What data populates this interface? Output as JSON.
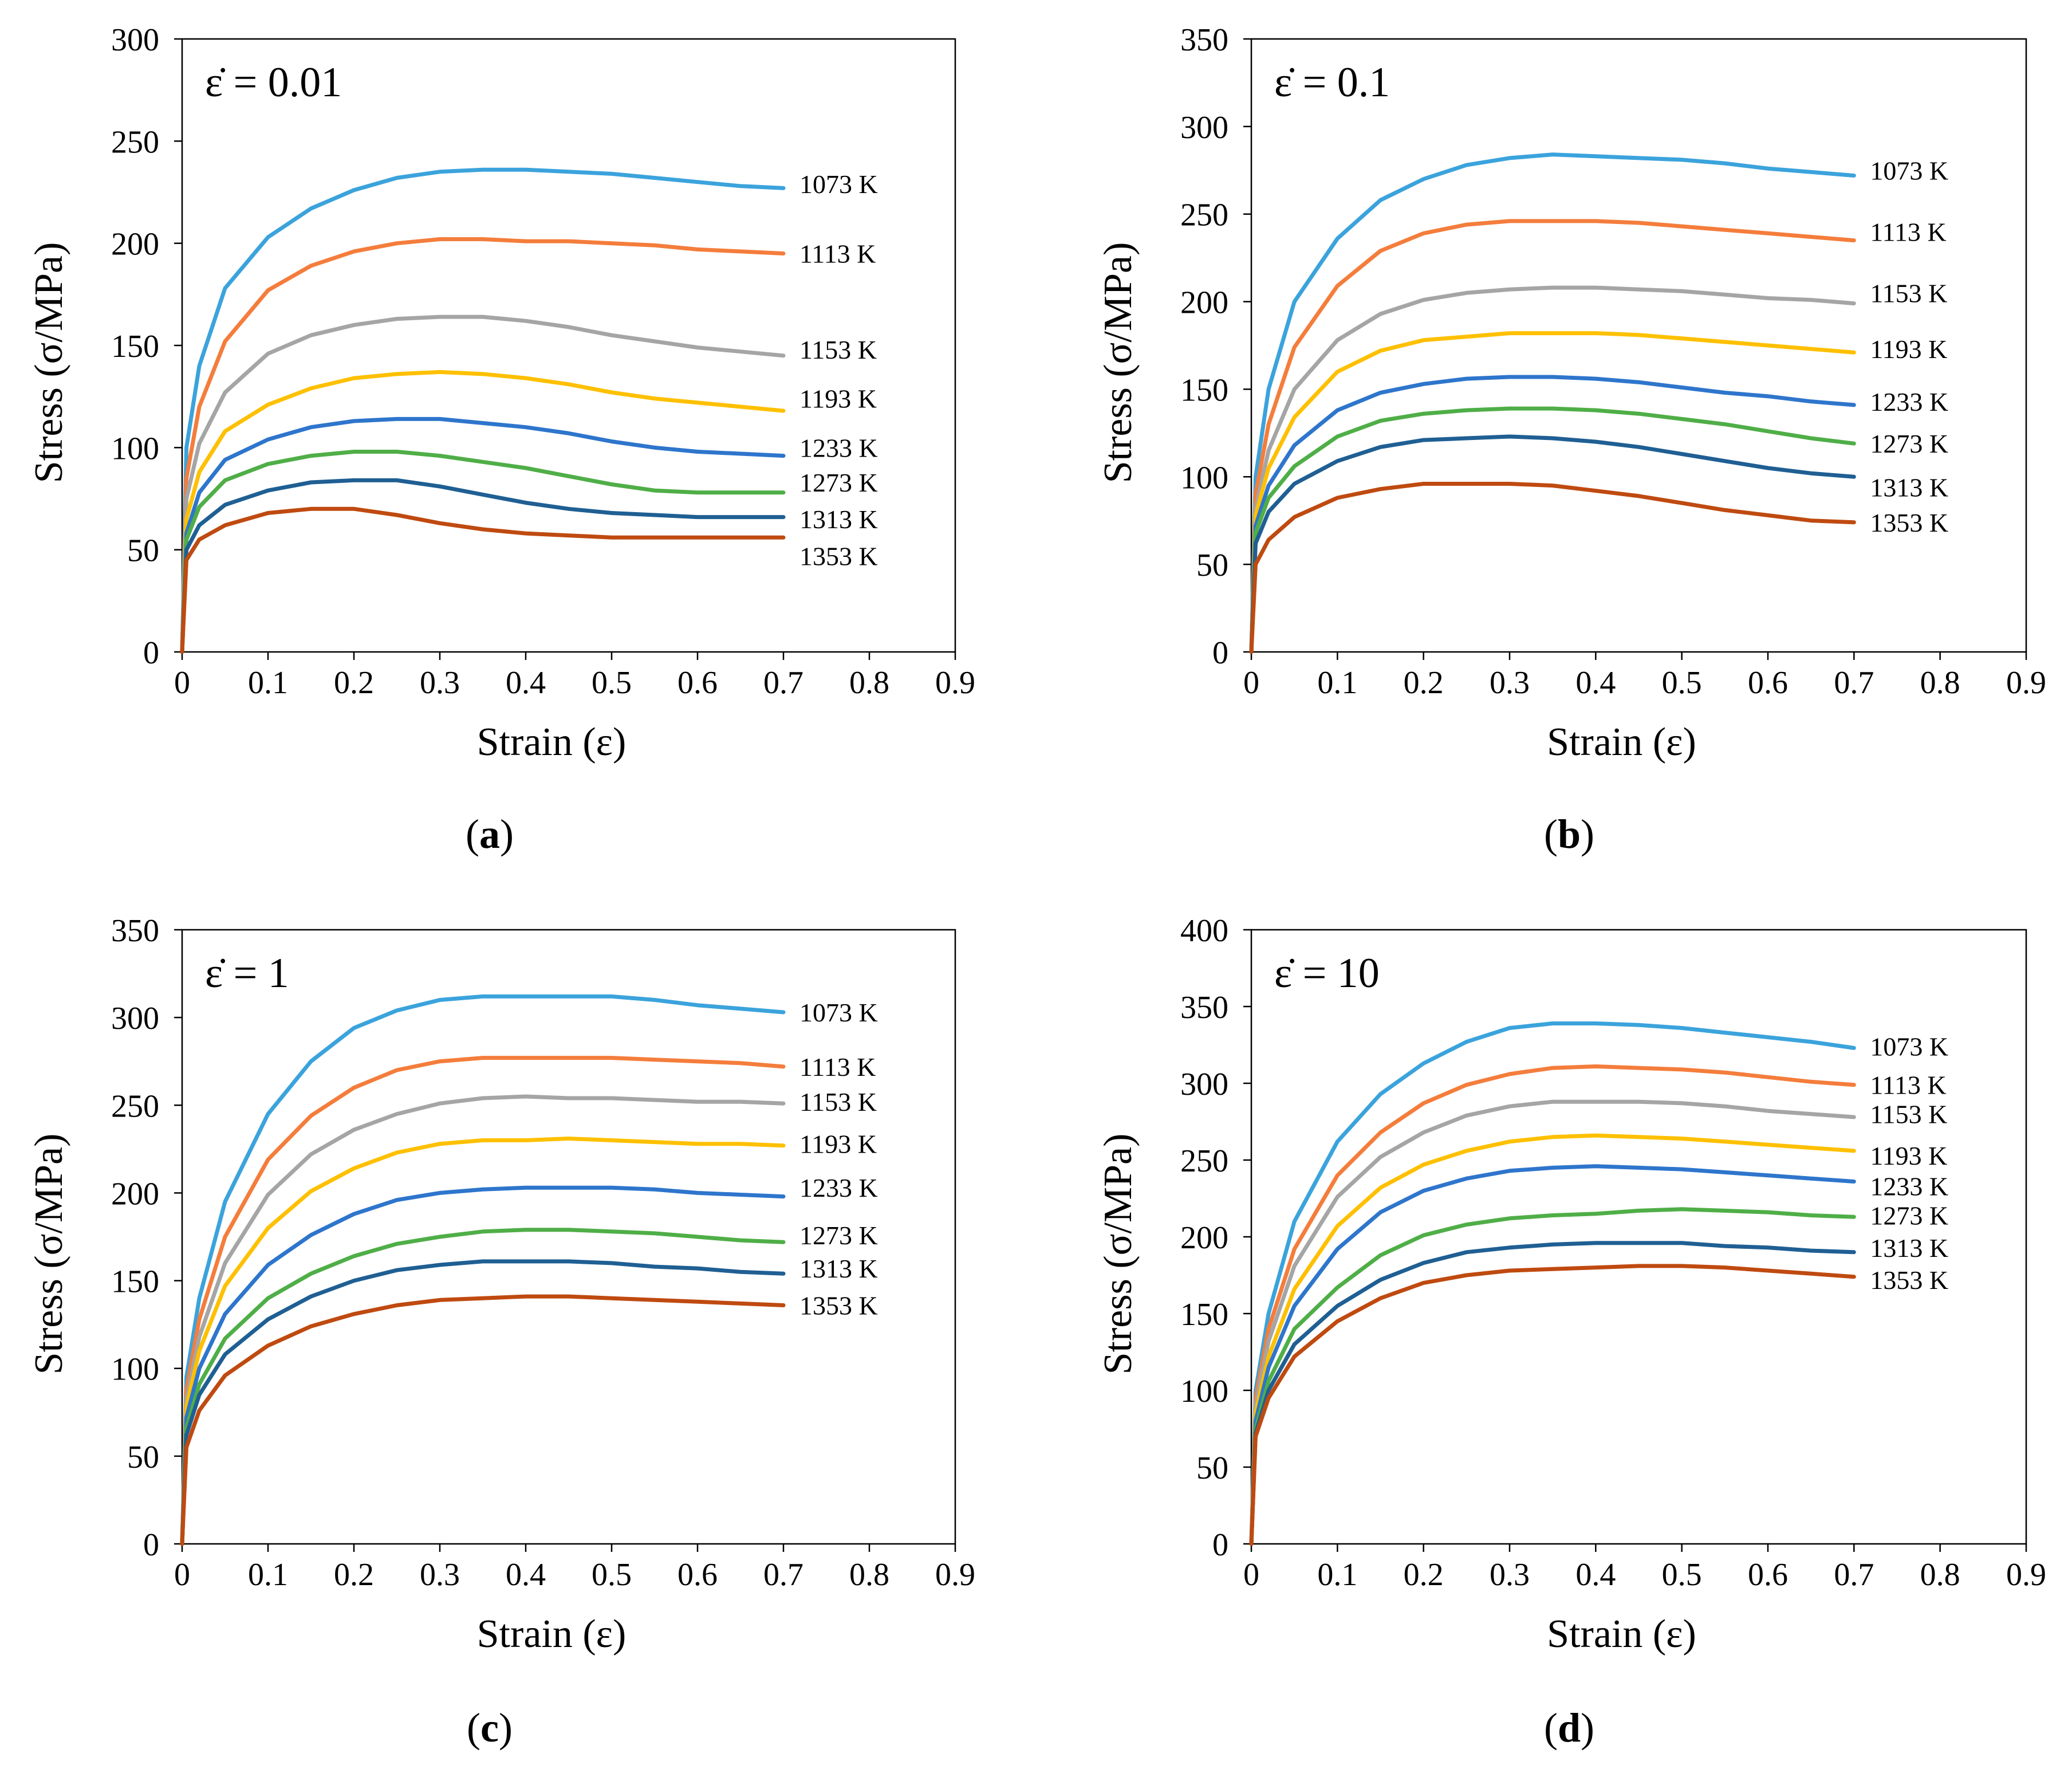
{
  "figure": {
    "panels": [
      {
        "caption_open": "(",
        "caption_letter": "a",
        "caption_close": ")"
      },
      {
        "caption_open": "(",
        "caption_letter": "b",
        "caption_close": ")"
      },
      {
        "caption_open": "(",
        "caption_letter": "c",
        "caption_close": ")"
      },
      {
        "caption_open": "(",
        "caption_letter": "d",
        "caption_close": ")"
      }
    ]
  },
  "colors": {
    "1073 K": "#3ba3dc",
    "1113 K": "#f47d3c",
    "1153 K": "#a5a5a5",
    "1193 K": "#fec000",
    "1233 K": "#2e75cc",
    "1273 K": "#4fae47",
    "1313 K": "#1f5f93",
    "1353 K": "#bf4a10"
  },
  "chart_data": [
    {
      "type": "line",
      "rate_label": "ε̇ = 0.01",
      "xlabel": "Strain (ε)",
      "ylabel": "Stress (σ/MPa)",
      "xlim": [
        0,
        0.9
      ],
      "ylim": [
        0,
        300
      ],
      "xticks": [
        "0",
        "0.1",
        "0.2",
        "0.3",
        "0.4",
        "0.5",
        "0.6",
        "0.7",
        "0.8",
        "0.9"
      ],
      "yticks": [
        "0",
        "50",
        "100",
        "150",
        "200",
        "250",
        "300"
      ],
      "ytick_values": [
        0,
        50,
        100,
        150,
        200,
        250,
        300
      ],
      "x": [
        0,
        0.005,
        0.02,
        0.05,
        0.1,
        0.15,
        0.2,
        0.25,
        0.3,
        0.35,
        0.4,
        0.45,
        0.5,
        0.55,
        0.6,
        0.65,
        0.7
      ],
      "series": [
        {
          "name": "1073 K",
          "label_y": 229,
          "values": [
            0,
            100,
            140,
            178,
            203,
            217,
            226,
            232,
            235,
            236,
            236,
            235,
            234,
            232,
            230,
            228,
            227
          ]
        },
        {
          "name": "1113 K",
          "label_y": 195,
          "values": [
            0,
            85,
            120,
            152,
            177,
            189,
            196,
            200,
            202,
            202,
            201,
            201,
            200,
            199,
            197,
            196,
            195
          ]
        },
        {
          "name": "1153 K",
          "label_y": 148,
          "values": [
            0,
            75,
            102,
            127,
            146,
            155,
            160,
            163,
            164,
            164,
            162,
            159,
            155,
            152,
            149,
            147,
            145
          ]
        },
        {
          "name": "1193 K",
          "label_y": 124,
          "values": [
            0,
            65,
            88,
            108,
            121,
            129,
            134,
            136,
            137,
            136,
            134,
            131,
            127,
            124,
            122,
            120,
            118
          ]
        },
        {
          "name": "1233 K",
          "label_y": 100,
          "values": [
            0,
            58,
            78,
            94,
            104,
            110,
            113,
            114,
            114,
            112,
            110,
            107,
            103,
            100,
            98,
            97,
            96
          ]
        },
        {
          "name": "1273 K",
          "label_y": 83,
          "values": [
            0,
            55,
            71,
            84,
            92,
            96,
            98,
            98,
            96,
            93,
            90,
            86,
            82,
            79,
            78,
            78,
            78
          ]
        },
        {
          "name": "1313 K",
          "label_y": 65,
          "values": [
            0,
            50,
            62,
            72,
            79,
            83,
            84,
            84,
            81,
            77,
            73,
            70,
            68,
            67,
            66,
            66,
            66
          ]
        },
        {
          "name": "1353 K",
          "label_y": 47,
          "values": [
            0,
            45,
            55,
            62,
            68,
            70,
            70,
            67,
            63,
            60,
            58,
            57,
            56,
            56,
            56,
            56,
            56
          ]
        }
      ]
    },
    {
      "type": "line",
      "rate_label": "ε̇ = 0.1",
      "xlabel": "Strain (ε)",
      "ylabel": "Stress (σ/MPa)",
      "xlim": [
        0,
        0.9
      ],
      "ylim": [
        0,
        350
      ],
      "xticks": [
        "0",
        "0.1",
        "0.2",
        "0.3",
        "0.4",
        "0.5",
        "0.6",
        "0.7",
        "0.8",
        "0.9"
      ],
      "yticks": [
        "0",
        "50",
        "100",
        "150",
        "200",
        "250",
        "300",
        "350"
      ],
      "ytick_values": [
        0,
        50,
        100,
        150,
        200,
        250,
        300,
        350
      ],
      "x": [
        0,
        0.005,
        0.02,
        0.05,
        0.1,
        0.15,
        0.2,
        0.25,
        0.3,
        0.35,
        0.4,
        0.45,
        0.5,
        0.55,
        0.6,
        0.65,
        0.7
      ],
      "series": [
        {
          "name": "1073 K",
          "label_y": 275,
          "values": [
            0,
            100,
            150,
            200,
            236,
            258,
            270,
            278,
            282,
            284,
            283,
            282,
            281,
            279,
            276,
            274,
            272
          ]
        },
        {
          "name": "1113 K",
          "label_y": 240,
          "values": [
            0,
            90,
            130,
            174,
            209,
            229,
            239,
            244,
            246,
            246,
            246,
            245,
            243,
            241,
            239,
            237,
            235
          ]
        },
        {
          "name": "1153 K",
          "label_y": 205,
          "values": [
            0,
            82,
            115,
            150,
            178,
            193,
            201,
            205,
            207,
            208,
            208,
            207,
            206,
            204,
            202,
            201,
            199
          ]
        },
        {
          "name": "1193 K",
          "label_y": 173,
          "values": [
            0,
            78,
            105,
            134,
            160,
            172,
            178,
            180,
            182,
            182,
            182,
            181,
            179,
            177,
            175,
            173,
            171
          ]
        },
        {
          "name": "1233 K",
          "label_y": 143,
          "values": [
            0,
            72,
            95,
            118,
            138,
            148,
            153,
            156,
            157,
            157,
            156,
            154,
            151,
            148,
            146,
            143,
            141
          ]
        },
        {
          "name": "1273 K",
          "label_y": 119,
          "values": [
            0,
            68,
            88,
            106,
            123,
            132,
            136,
            138,
            139,
            139,
            138,
            136,
            133,
            130,
            126,
            122,
            119
          ]
        },
        {
          "name": "1313 K",
          "label_y": 94,
          "values": [
            0,
            62,
            80,
            96,
            109,
            117,
            121,
            122,
            123,
            122,
            120,
            117,
            113,
            109,
            105,
            102,
            100
          ]
        },
        {
          "name": "1353 K",
          "label_y": 74,
          "values": [
            0,
            50,
            64,
            77,
            88,
            93,
            96,
            96,
            96,
            95,
            92,
            89,
            85,
            81,
            78,
            75,
            74
          ]
        }
      ]
    },
    {
      "type": "line",
      "rate_label": "ε̇ = 1",
      "xlabel": "Strain (ε)",
      "ylabel": "Stress (σ/MPa)",
      "xlim": [
        0,
        0.9
      ],
      "ylim": [
        0,
        350
      ],
      "xticks": [
        "0",
        "0.1",
        "0.2",
        "0.3",
        "0.4",
        "0.5",
        "0.6",
        "0.7",
        "0.8",
        "0.9"
      ],
      "yticks": [
        "0",
        "50",
        "100",
        "150",
        "200",
        "250",
        "300",
        "350"
      ],
      "ytick_values": [
        0,
        50,
        100,
        150,
        200,
        250,
        300,
        350
      ],
      "x": [
        0,
        0.005,
        0.02,
        0.05,
        0.1,
        0.15,
        0.2,
        0.25,
        0.3,
        0.35,
        0.4,
        0.45,
        0.5,
        0.55,
        0.6,
        0.65,
        0.7
      ],
      "series": [
        {
          "name": "1073 K",
          "label_y": 303,
          "values": [
            0,
            95,
            140,
            195,
            245,
            275,
            294,
            304,
            310,
            312,
            312,
            312,
            312,
            310,
            307,
            305,
            303
          ]
        },
        {
          "name": "1113 K",
          "label_y": 272,
          "values": [
            0,
            88,
            128,
            175,
            219,
            244,
            260,
            270,
            275,
            277,
            277,
            277,
            277,
            276,
            275,
            274,
            272
          ]
        },
        {
          "name": "1153 K",
          "label_y": 252,
          "values": [
            0,
            82,
            118,
            160,
            199,
            222,
            236,
            245,
            251,
            254,
            255,
            254,
            254,
            253,
            252,
            252,
            251
          ]
        },
        {
          "name": "1193 K",
          "label_y": 228,
          "values": [
            0,
            78,
            110,
            147,
            180,
            201,
            214,
            223,
            228,
            230,
            230,
            231,
            230,
            229,
            228,
            228,
            227
          ]
        },
        {
          "name": "1233 K",
          "label_y": 203,
          "values": [
            0,
            72,
            100,
            131,
            159,
            176,
            188,
            196,
            200,
            202,
            203,
            203,
            203,
            202,
            200,
            199,
            198
          ]
        },
        {
          "name": "1273 K",
          "label_y": 176,
          "values": [
            0,
            66,
            91,
            117,
            140,
            154,
            164,
            171,
            175,
            178,
            179,
            179,
            178,
            177,
            175,
            173,
            172
          ]
        },
        {
          "name": "1313 K",
          "label_y": 157,
          "values": [
            0,
            62,
            85,
            108,
            128,
            141,
            150,
            156,
            159,
            161,
            161,
            161,
            160,
            158,
            157,
            155,
            154
          ]
        },
        {
          "name": "1353 K",
          "label_y": 136,
          "values": [
            0,
            55,
            76,
            96,
            113,
            124,
            131,
            136,
            139,
            140,
            141,
            141,
            140,
            139,
            138,
            137,
            136
          ]
        }
      ]
    },
    {
      "type": "line",
      "rate_label": "ε̇ = 10",
      "xlabel": "Strain (ε)",
      "ylabel": "Stress (σ/MPa)",
      "xlim": [
        0,
        0.9
      ],
      "ylim": [
        0,
        400
      ],
      "xticks": [
        "0",
        "0.1",
        "0.2",
        "0.3",
        "0.4",
        "0.5",
        "0.6",
        "0.7",
        "0.8",
        "0.9"
      ],
      "yticks": [
        "0",
        "50",
        "100",
        "150",
        "200",
        "250",
        "300",
        "350",
        "400"
      ],
      "ytick_values": [
        0,
        50,
        100,
        150,
        200,
        250,
        300,
        350,
        400
      ],
      "x": [
        0,
        0.005,
        0.02,
        0.05,
        0.1,
        0.15,
        0.2,
        0.25,
        0.3,
        0.35,
        0.4,
        0.45,
        0.5,
        0.55,
        0.6,
        0.65,
        0.7
      ],
      "series": [
        {
          "name": "1073 K",
          "label_y": 324,
          "values": [
            0,
            100,
            150,
            210,
            262,
            293,
            313,
            327,
            336,
            339,
            339,
            338,
            336,
            333,
            330,
            327,
            323
          ]
        },
        {
          "name": "1113 K",
          "label_y": 299,
          "values": [
            0,
            95,
            140,
            192,
            240,
            268,
            287,
            299,
            306,
            310,
            311,
            310,
            309,
            307,
            304,
            301,
            299
          ]
        },
        {
          "name": "1153 K",
          "label_y": 280,
          "values": [
            0,
            90,
            132,
            181,
            226,
            252,
            268,
            279,
            285,
            288,
            288,
            288,
            287,
            285,
            282,
            280,
            278
          ]
        },
        {
          "name": "1193 K",
          "label_y": 253,
          "values": [
            0,
            85,
            122,
            166,
            207,
            232,
            247,
            256,
            262,
            265,
            266,
            265,
            264,
            262,
            260,
            258,
            256
          ]
        },
        {
          "name": "1233 K",
          "label_y": 233,
          "values": [
            0,
            80,
            115,
            155,
            192,
            216,
            230,
            238,
            243,
            245,
            246,
            245,
            244,
            242,
            240,
            238,
            236
          ]
        },
        {
          "name": "1273 K",
          "label_y": 214,
          "values": [
            0,
            75,
            106,
            140,
            167,
            188,
            201,
            208,
            212,
            214,
            215,
            217,
            218,
            217,
            216,
            214,
            213
          ]
        },
        {
          "name": "1313 K",
          "label_y": 193,
          "values": [
            0,
            72,
            100,
            130,
            155,
            172,
            183,
            190,
            193,
            195,
            196,
            196,
            196,
            194,
            193,
            191,
            190
          ]
        },
        {
          "name": "1353 K",
          "label_y": 172,
          "values": [
            0,
            70,
            95,
            122,
            145,
            160,
            170,
            175,
            178,
            179,
            180,
            181,
            181,
            180,
            178,
            176,
            174
          ]
        }
      ]
    }
  ]
}
